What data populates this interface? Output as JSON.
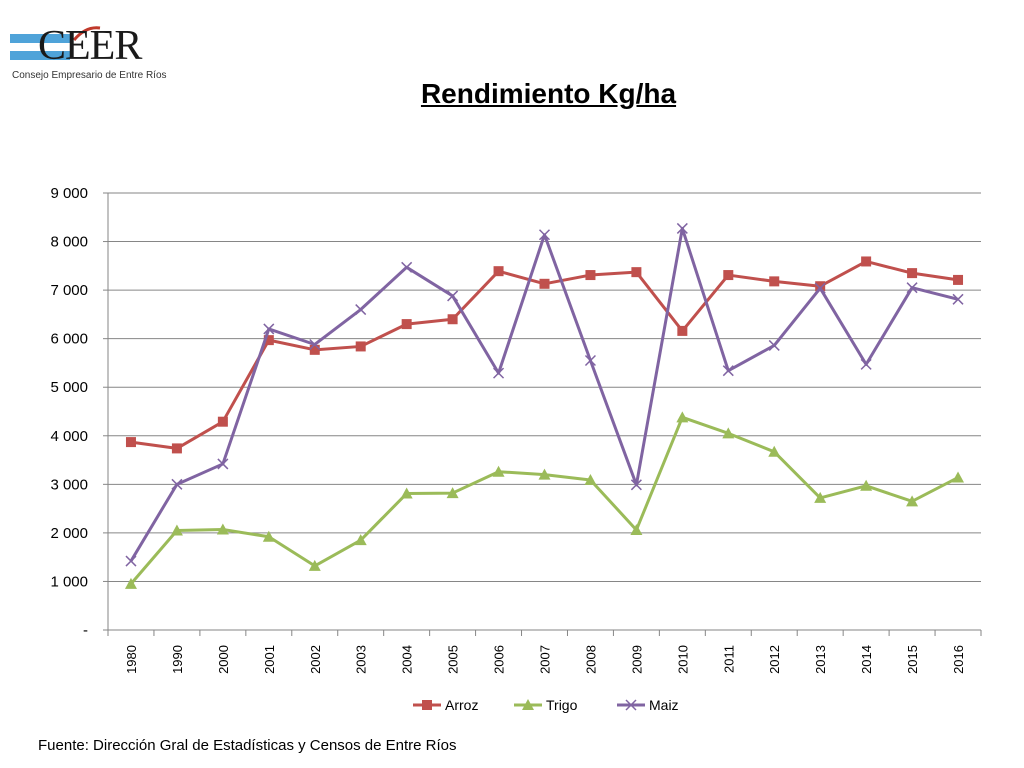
{
  "logo": {
    "text": "CEER",
    "subtitle": "Consejo Empresario de Entre Ríos"
  },
  "title": "Rendimiento Kg/ha",
  "source": "Fuente: Dirección Gral de Estadísticas y Censos de Entre Ríos",
  "colors": {
    "Arroz": "#C0504D",
    "Trigo": "#9BBB59",
    "Maiz": "#8064A2",
    "grid": "#868686"
  },
  "chart_data": {
    "type": "line",
    "categories": [
      "1980",
      "1990",
      "2000",
      "2001",
      "2002",
      "2003",
      "2004",
      "2005",
      "2006",
      "2007",
      "2008",
      "2009",
      "2010",
      "2011",
      "2012",
      "2013",
      "2014",
      "2015",
      "2016"
    ],
    "series": [
      {
        "name": "Arroz",
        "marker": "square",
        "values": [
          3870,
          3740,
          4290,
          5970,
          5770,
          5840,
          6300,
          6400,
          7390,
          7130,
          7310,
          7370,
          6160,
          7310,
          7180,
          7080,
          7590,
          7350,
          7210
        ]
      },
      {
        "name": "Trigo",
        "marker": "triangle",
        "values": [
          950,
          2050,
          2070,
          1920,
          1320,
          1850,
          2810,
          2820,
          3260,
          3200,
          3090,
          2060,
          4380,
          4050,
          3670,
          2720,
          2970,
          2650,
          3140
        ]
      },
      {
        "name": "Maiz",
        "marker": "x",
        "values": [
          1420,
          3000,
          3420,
          6200,
          5880,
          6600,
          7470,
          6880,
          5290,
          8140,
          5550,
          2990,
          8270,
          5340,
          5860,
          7040,
          5470,
          7050,
          6810
        ]
      }
    ],
    "ylim": [
      0,
      9000
    ],
    "yticks": [
      "-",
      "1 000",
      "2 000",
      "3 000",
      "4 000",
      "5 000",
      "6 000",
      "7 000",
      "8 000",
      "9 000"
    ],
    "grid": true,
    "legend_position": "bottom"
  }
}
